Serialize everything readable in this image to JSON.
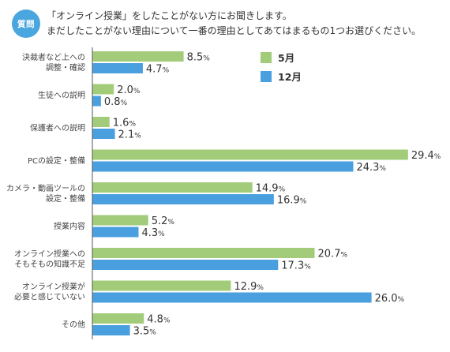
{
  "header": {
    "badge": "質問",
    "line1": "「オンライン授業」をしたことがない方にお聞きします。",
    "line2": "まだしたことがない理由について一番の理由としてあてはまるもの1つお選びください。"
  },
  "colors": {
    "badge": "#4aa6de",
    "series_may": "#a3cc7a",
    "series_dec": "#4a9fdf",
    "axis": "#555555"
  },
  "chart_data": {
    "type": "bar",
    "orientation": "horizontal",
    "unit": "%",
    "legend_position": "top-right",
    "grid": false,
    "xlim": [
      0,
      30
    ],
    "categories": [
      [
        "決裁者など上への",
        "調整・確認"
      ],
      [
        "生徒への説明"
      ],
      [
        "保護者への説明"
      ],
      [
        "PCの設定・整備"
      ],
      [
        "カメラ・動画ツールの",
        "設定・整備"
      ],
      [
        "授業内容"
      ],
      [
        "オンライン授業への",
        "そもそもの知識不足"
      ],
      [
        "オンライン授業が",
        "必要と感じていない"
      ],
      [
        "その他"
      ]
    ],
    "series": [
      {
        "name": "5月",
        "values": [
          8.5,
          2.0,
          1.6,
          29.4,
          14.9,
          5.2,
          20.7,
          12.9,
          4.8
        ]
      },
      {
        "name": "12月",
        "values": [
          4.7,
          0.8,
          2.1,
          24.3,
          16.9,
          4.3,
          17.3,
          26.0,
          3.5
        ]
      }
    ]
  }
}
